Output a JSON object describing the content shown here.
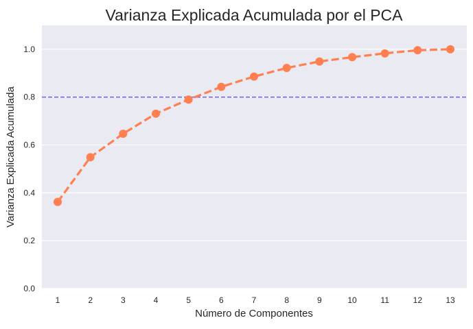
{
  "chart_data": {
    "type": "line",
    "title": "Varianza Explicada Acumulada por el PCA",
    "xlabel": "Número de Componentes",
    "ylabel": "Varianza Explicada Acumulada",
    "categories": [
      "1",
      "2",
      "3",
      "4",
      "5",
      "6",
      "7",
      "8",
      "9",
      "10",
      "11",
      "12",
      "13"
    ],
    "series": [
      {
        "values": [
          0.362,
          0.549,
          0.647,
          0.731,
          0.79,
          0.843,
          0.886,
          0.922,
          0.949,
          0.967,
          0.983,
          0.996,
          1.0
        ],
        "color": "#ff7f50",
        "line_style": "dashed",
        "marker": "circle"
      }
    ],
    "reference_line": {
      "y": 0.8,
      "color": "#7b68ee",
      "line_style": "dashed"
    },
    "ylim": [
      0,
      1.1
    ],
    "yticks": [
      "0.0",
      "0.2",
      "0.4",
      "0.6",
      "0.8",
      "1.0"
    ],
    "grid": true,
    "legend": false,
    "background": "#eaeaf2"
  }
}
